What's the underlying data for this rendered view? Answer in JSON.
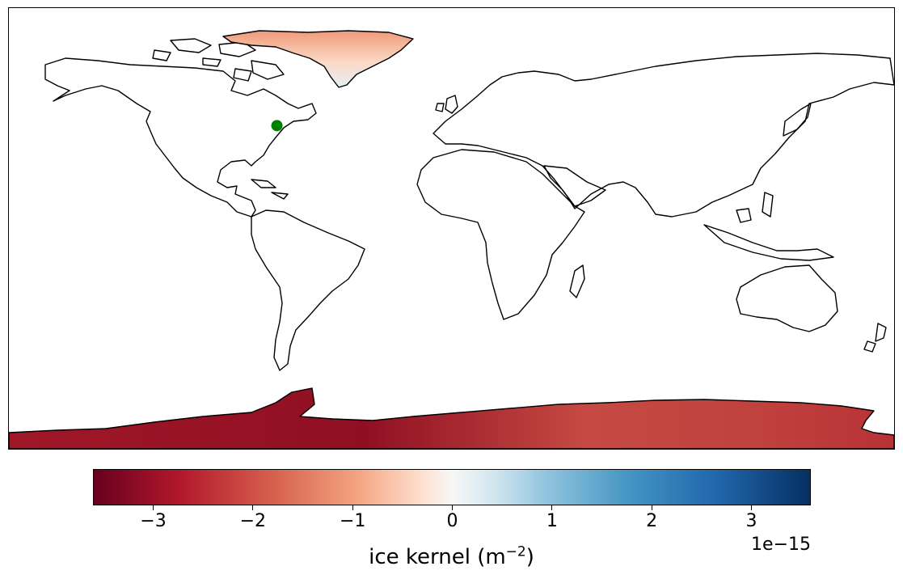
{
  "map": {
    "projection": "PlateCarree",
    "extent": {
      "lon": [
        -180,
        180
      ],
      "lat": [
        -90,
        90
      ]
    },
    "coastlines": true,
    "station": {
      "lon": -71,
      "lat": 42,
      "color": "#008000",
      "icon": "station-dot-icon"
    },
    "shaded_regions": [
      {
        "name": "greenland",
        "value_range": [
          -1.8,
          0.3
        ]
      },
      {
        "name": "antarctica",
        "value_range": [
          -3.6,
          -2.7
        ]
      }
    ]
  },
  "colorbar": {
    "colormap": "RdBu",
    "range": [
      -3.6,
      3.6
    ],
    "ticks": [
      "−3",
      "−2",
      "−1",
      "0",
      "1",
      "2",
      "3"
    ],
    "tick_values": [
      -3,
      -2,
      -1,
      0,
      1,
      2,
      3
    ],
    "offset_text": "1e−15",
    "label_main": "ice kernel (m",
    "label_sup": "−2",
    "label_close": ")"
  }
}
